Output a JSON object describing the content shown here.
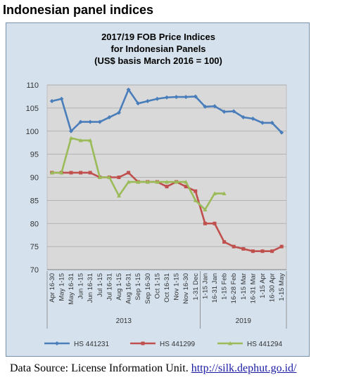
{
  "heading": "Indonesian panel indices",
  "source": {
    "label": "Data Source: License Information Unit.",
    "link": "http://silk.dephut.go.id/"
  },
  "colors": {
    "HS 441231": "#4a7ebb",
    "HS 441299": "#c0504d",
    "HS 441294": "#9bbb59",
    "plot_bg": "#d9d9d9",
    "chart_bg": "#d5e2ee"
  },
  "chart_data": {
    "type": "line",
    "title": [
      "2017/19 FOB Price Indices",
      "for Indonesian Panels",
      "(US$ basis March 2016 = 100)"
    ],
    "ylim": [
      70,
      110
    ],
    "yticks": [
      70,
      75,
      80,
      85,
      90,
      95,
      100,
      105,
      110
    ],
    "categories": [
      "Apr 16-30",
      "May 1-15",
      "May 16-31",
      "Jun 1-15",
      "Jun 16-31",
      "Jul 1-15",
      "Jul 16-31",
      "Aug 1-15",
      "Aug 16-31",
      "Sep 1-15",
      "Sep 16-30",
      "Oct 1-15",
      "Oct 16-31",
      "Nov 1-15",
      "Nov 16-30",
      "1-31 Dec",
      "1-15 Jan",
      "16-31 Jan",
      "1-15 Feb",
      "16-28 Feb",
      "1-15 Mar",
      "16-31 Mar",
      "1-15 Apr",
      "16-30 Apr",
      "1-15 May"
    ],
    "year_groups": [
      {
        "label": "2013",
        "start": 0,
        "end": 15
      },
      {
        "label": "2019",
        "start": 16,
        "end": 24
      }
    ],
    "grid": true,
    "legend": "bottom",
    "series": [
      {
        "name": "HS 441231",
        "values": [
          106.5,
          107,
          100,
          102,
          102,
          102,
          103,
          104,
          109,
          106,
          106.5,
          107,
          107.3,
          107.4,
          107.4,
          107.5,
          105.3,
          105.4,
          104.2,
          104.3,
          103,
          102.7,
          101.8,
          101.8,
          99.7
        ]
      },
      {
        "name": "HS 441299",
        "values": [
          91,
          91,
          91,
          91,
          91,
          90,
          90,
          90,
          91,
          89,
          89,
          89,
          88,
          89,
          88,
          87,
          80,
          80,
          76,
          75,
          74.5,
          74,
          74,
          74,
          75
        ]
      },
      {
        "name": "HS 441294",
        "values": [
          91,
          91,
          98.5,
          98,
          98,
          90,
          90,
          86,
          89,
          89,
          89,
          89,
          89,
          89,
          89,
          85,
          83,
          86.5,
          86.5,
          null,
          null,
          null,
          null,
          null,
          null
        ]
      }
    ]
  }
}
